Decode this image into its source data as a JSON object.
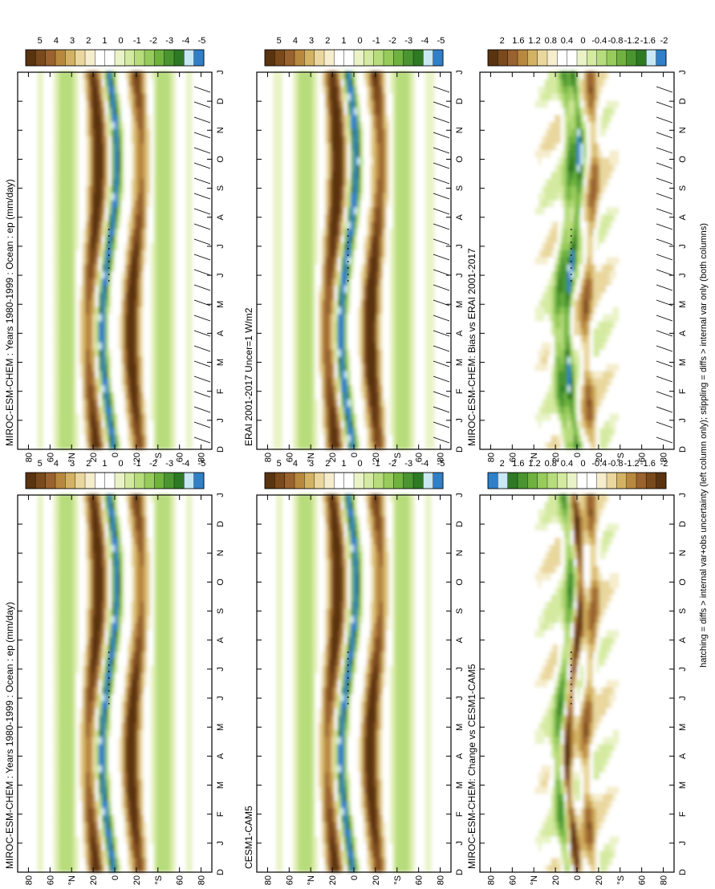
{
  "figure": {
    "footnote": "hatching = diffs > internal var+obs uncertainty (left column only); stippling = diffs > internal var only (both columns)"
  },
  "chart_data": [
    {
      "type": "heatmap",
      "panel": "top-left",
      "title": "MIROC-ESM-CHEM : Years 1980-1999 : Ocean : ep (mm/day)",
      "x_categories": [
        "D",
        "J",
        "F",
        "M",
        "A",
        "M",
        "J",
        "J",
        "A",
        "S",
        "O",
        "N",
        "D",
        "J"
      ],
      "y_ticks": [
        "80",
        "60",
        "°N",
        "20",
        "0",
        "20",
        "°S",
        "60",
        "80"
      ],
      "colorbar": {
        "labels": [
          "5",
          "4",
          "3",
          "2",
          "1",
          "0",
          "-1",
          "-2",
          "-3",
          "-4",
          "-5"
        ],
        "colors": [
          "#5a3310",
          "#7a4a1c",
          "#99622e",
          "#b8883f",
          "#d3b264",
          "#e9d79e",
          "#f5edcc",
          "#ffffff",
          "#ffffff",
          "#eaf3c8",
          "#d4eaa0",
          "#b7dc7c",
          "#97cb5c",
          "#6fb240",
          "#4a9530",
          "#2e7a24",
          "#c8e8f4",
          "#2f80c8"
        ]
      },
      "hatching": true,
      "stippling": true,
      "pattern": "precipitation minus evaporation (ep) by latitude and month"
    },
    {
      "type": "heatmap",
      "panel": "top-right",
      "title": "MIROC-ESM-CHEM : Years 1980-1999 : Ocean : ep (mm/day)",
      "x_categories": [
        "D",
        "J",
        "F",
        "M",
        "A",
        "M",
        "J",
        "J",
        "A",
        "S",
        "O",
        "N",
        "D",
        "J"
      ],
      "y_ticks": [
        "80",
        "60",
        "°N",
        "20",
        "0",
        "20",
        "°S",
        "60",
        "80"
      ],
      "colorbar": {
        "labels": [
          "5",
          "4",
          "3",
          "2",
          "1",
          "0",
          "-1",
          "-2",
          "-3",
          "-4",
          "-5"
        ]
      },
      "hatching": false,
      "stippling": true
    },
    {
      "type": "heatmap",
      "panel": "middle-left",
      "title": "ERAI 2001-2017 Uncer=1 W/m2",
      "x_categories": [
        "D",
        "J",
        "F",
        "M",
        "A",
        "M",
        "J",
        "J",
        "A",
        "S",
        "O",
        "N",
        "D",
        "J"
      ],
      "y_ticks": [
        "80",
        "60",
        "°N",
        "20",
        "0",
        "20",
        "°S",
        "60",
        "80"
      ],
      "colorbar": {
        "labels": [
          "5",
          "4",
          "3",
          "2",
          "1",
          "0",
          "-1",
          "-2",
          "-3",
          "-4",
          "-5"
        ]
      },
      "hatching": true,
      "stippling": true
    },
    {
      "type": "heatmap",
      "panel": "middle-right",
      "title": "CESM1-CAM5",
      "x_categories": [
        "D",
        "J",
        "F",
        "M",
        "A",
        "M",
        "J",
        "J",
        "A",
        "S",
        "O",
        "N",
        "D",
        "J"
      ],
      "y_ticks": [
        "80",
        "60",
        "°N",
        "20",
        "0",
        "20",
        "°S",
        "60",
        "80"
      ],
      "colorbar": {
        "labels": [
          "5",
          "4",
          "3",
          "2",
          "1",
          "0",
          "-1",
          "-2",
          "-3",
          "-4",
          "-5"
        ]
      },
      "hatching": false,
      "stippling": true
    },
    {
      "type": "heatmap",
      "panel": "bottom-left",
      "title": "MIROC-ESM-CHEM: Bias vs ERAI 2001-2017",
      "x_categories": [
        "D",
        "J",
        "F",
        "M",
        "A",
        "M",
        "J",
        "J",
        "A",
        "S",
        "O",
        "N",
        "D",
        "J"
      ],
      "y_ticks": [
        "80",
        "60",
        "°N",
        "20",
        "0",
        "20",
        "°S",
        "60",
        "80"
      ],
      "colorbar": {
        "labels": [
          "2",
          "1.6",
          "1.2",
          "0.8",
          "0.4",
          "0",
          "-0.4",
          "-0.8",
          "-1.2",
          "-1.6",
          "-2"
        ],
        "colors": [
          "#5a3310",
          "#7a4a1c",
          "#99622e",
          "#b8883f",
          "#d3b264",
          "#e9d79e",
          "#f5edcc",
          "#ffffff",
          "#ffffff",
          "#eaf3c8",
          "#d4eaa0",
          "#b7dc7c",
          "#97cb5c",
          "#6fb240",
          "#4a9530",
          "#2e7a24",
          "#c8e8f4",
          "#2f80c8"
        ]
      },
      "hatching": true,
      "stippling": true
    },
    {
      "type": "heatmap",
      "panel": "bottom-right",
      "title": "MIROC-ESM-CHEM: Change vs CESM1-CAM5",
      "x_categories": [
        "D",
        "J",
        "F",
        "M",
        "A",
        "M",
        "J",
        "J",
        "A",
        "S",
        "O",
        "N",
        "D",
        "J"
      ],
      "y_ticks": [
        "80",
        "60",
        "°N",
        "20",
        "0",
        "20",
        "°S",
        "60",
        "80"
      ],
      "colorbar": {
        "labels": [
          "2",
          "1.6",
          "1.2",
          "0.8",
          "0.4",
          "0",
          "-0.4",
          "-0.8",
          "-1.2",
          "-1.6",
          "-2"
        ],
        "colors": [
          "#2f80c8",
          "#c8e8f4",
          "#2e7a24",
          "#4a9530",
          "#6fb240",
          "#97cb5c",
          "#b7dc7c",
          "#d4eaa0",
          "#eaf3c8",
          "#ffffff",
          "#ffffff",
          "#f5edcc",
          "#e9d79e",
          "#d3b264",
          "#b8883f",
          "#99622e",
          "#7a4a1c",
          "#5a3310"
        ]
      },
      "hatching": false,
      "stippling": true
    }
  ]
}
